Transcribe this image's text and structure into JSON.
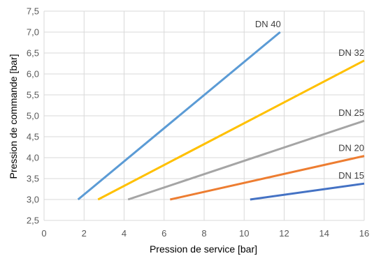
{
  "chart_data": {
    "type": "line",
    "title": "",
    "xlabel": "Pression de service [bar]",
    "ylabel": "Pression de commande [bar]",
    "xlim": [
      0,
      16
    ],
    "ylim": [
      2.5,
      7.5
    ],
    "x_ticks": [
      "0",
      "2",
      "4",
      "6",
      "8",
      "10",
      "12",
      "14",
      "16"
    ],
    "y_ticks": [
      "2,5",
      "3,0",
      "3,5",
      "4,0",
      "4,5",
      "5,0",
      "5,5",
      "6,0",
      "6,5",
      "7,0",
      "7,5"
    ],
    "grid": true,
    "legend": "none",
    "series": [
      {
        "name": "DN 40",
        "color": "#5b9bd5",
        "x": [
          1.7,
          11.8
        ],
        "y": [
          3.0,
          7.0
        ]
      },
      {
        "name": "DN 32",
        "color": "#ffc000",
        "x": [
          2.7,
          16.0
        ],
        "y": [
          3.0,
          6.32
        ]
      },
      {
        "name": "DN 25",
        "color": "#a5a5a5",
        "x": [
          4.2,
          16.0
        ],
        "y": [
          3.0,
          4.88
        ]
      },
      {
        "name": "DN 20",
        "color": "#ed7d31",
        "x": [
          6.3,
          16.0
        ],
        "y": [
          3.0,
          4.04
        ]
      },
      {
        "name": "DN 15",
        "color": "#4472c4",
        "x": [
          10.3,
          16.0
        ],
        "y": [
          3.0,
          3.38
        ]
      }
    ]
  }
}
